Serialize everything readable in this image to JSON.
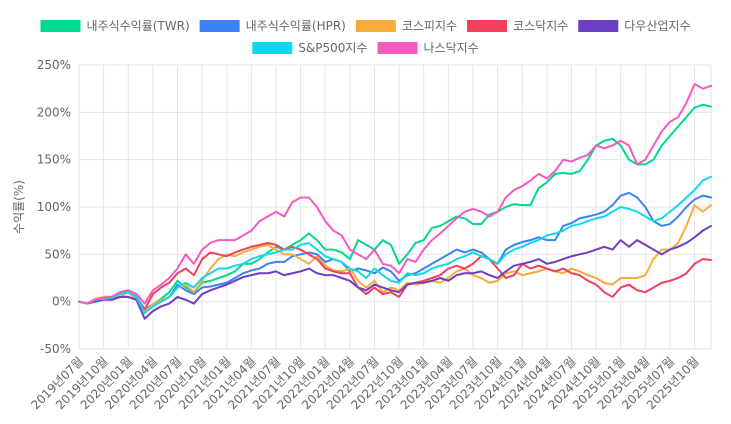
{
  "chart_data": {
    "type": "line",
    "ylabel": "수익률(%)",
    "ylim": [
      -50,
      250
    ],
    "yticks": [
      "250%",
      "200%",
      "150%",
      "100%",
      "50%",
      "0%",
      "-50%"
    ],
    "ytick_values": [
      250,
      200,
      150,
      100,
      50,
      0,
      -50
    ],
    "grid": true,
    "legend_position": "top",
    "xtick_labels": [
      "2019년07월",
      "2019년10월",
      "2020년01월",
      "2020년04월",
      "2020년07월",
      "2020년10월",
      "2021년01월",
      "2021년04월",
      "2021년07월",
      "2021년10월",
      "2022년01월",
      "2022년04월",
      "2022년07월",
      "2022년10월",
      "2023년01월",
      "2023년04월",
      "2023년07월",
      "2023년10월",
      "2024년01월",
      "2024년04월",
      "2024년07월",
      "2024년10월",
      "2025년01월",
      "2025년04월",
      "2025년07월",
      "2025년10월"
    ],
    "x": [
      "2019-07",
      "2019-08",
      "2019-09",
      "2019-10",
      "2019-11",
      "2019-12",
      "2020-01",
      "2020-02",
      "2020-03",
      "2020-04",
      "2020-05",
      "2020-06",
      "2020-07",
      "2020-08",
      "2020-09",
      "2020-10",
      "2020-11",
      "2020-12",
      "2021-01",
      "2021-02",
      "2021-03",
      "2021-04",
      "2021-05",
      "2021-06",
      "2021-07",
      "2021-08",
      "2021-09",
      "2021-10",
      "2021-11",
      "2021-12",
      "2022-01",
      "2022-02",
      "2022-03",
      "2022-04",
      "2022-05",
      "2022-06",
      "2022-07",
      "2022-08",
      "2022-09",
      "2022-10",
      "2022-11",
      "2022-12",
      "2023-01",
      "2023-02",
      "2023-03",
      "2023-04",
      "2023-05",
      "2023-06",
      "2023-07",
      "2023-08",
      "2023-09",
      "2023-10",
      "2023-11",
      "2023-12",
      "2024-01",
      "2024-02",
      "2024-03",
      "2024-04",
      "2024-05",
      "2024-06",
      "2024-07",
      "2024-08",
      "2024-09",
      "2024-10",
      "2024-11",
      "2024-12",
      "2025-01",
      "2025-02",
      "2025-03",
      "2025-04",
      "2025-05",
      "2025-06",
      "2025-07",
      "2025-08",
      "2025-09",
      "2025-10",
      "2025-11",
      "2025-12"
    ],
    "series": [
      {
        "name": "내주식수익률(TWR)",
        "color": "#00d98b",
        "values": [
          0,
          -2,
          3,
          5,
          5,
          10,
          12,
          5,
          -10,
          -3,
          3,
          10,
          22,
          15,
          10,
          20,
          22,
          25,
          28,
          32,
          40,
          40,
          45,
          52,
          58,
          55,
          60,
          65,
          72,
          65,
          55,
          55,
          52,
          45,
          65,
          60,
          55,
          65,
          60,
          40,
          50,
          62,
          65,
          78,
          80,
          85,
          90,
          88,
          82,
          82,
          92,
          95,
          100,
          103,
          102,
          102,
          120,
          126,
          135,
          136,
          135,
          138,
          150,
          165,
          170,
          172,
          165,
          150,
          145,
          145,
          150,
          165,
          175,
          185,
          195,
          205,
          208,
          206
        ]
      },
      {
        "name": "내주식수익률(HPR)",
        "color": "#3b82f6",
        "values": [
          0,
          -2,
          2,
          4,
          5,
          10,
          10,
          5,
          -8,
          -3,
          0,
          5,
          18,
          12,
          8,
          15,
          16,
          18,
          20,
          25,
          30,
          33,
          35,
          40,
          42,
          42,
          48,
          50,
          52,
          50,
          42,
          45,
          42,
          32,
          35,
          33,
          30,
          36,
          32,
          22,
          28,
          30,
          35,
          40,
          45,
          50,
          55,
          52,
          55,
          52,
          45,
          40,
          55,
          60,
          63,
          65,
          68,
          65,
          65,
          80,
          83,
          88,
          90,
          92,
          95,
          102,
          112,
          115,
          110,
          100,
          85,
          80,
          82,
          90,
          100,
          108,
          112,
          110
        ]
      },
      {
        "name": "코스피지수",
        "color": "#f6ad37",
        "values": [
          0,
          -2,
          3,
          5,
          5,
          5,
          10,
          2,
          -10,
          -3,
          2,
          5,
          15,
          18,
          10,
          22,
          35,
          45,
          50,
          48,
          52,
          55,
          58,
          60,
          55,
          50,
          50,
          45,
          40,
          48,
          38,
          33,
          32,
          35,
          22,
          15,
          22,
          10,
          15,
          12,
          20,
          18,
          20,
          22,
          20,
          25,
          32,
          35,
          28,
          25,
          20,
          22,
          30,
          32,
          28,
          30,
          32,
          35,
          32,
          30,
          35,
          32,
          28,
          25,
          20,
          18,
          25,
          25,
          25,
          28,
          45,
          55,
          55,
          62,
          80,
          102,
          95,
          102
        ]
      },
      {
        "name": "코스닥지수",
        "color": "#f43f5e",
        "values": [
          0,
          -2,
          2,
          3,
          2,
          5,
          5,
          2,
          -8,
          8,
          15,
          20,
          30,
          35,
          28,
          45,
          52,
          50,
          48,
          52,
          55,
          58,
          60,
          62,
          60,
          55,
          58,
          55,
          50,
          45,
          35,
          32,
          30,
          30,
          15,
          8,
          15,
          8,
          10,
          5,
          18,
          20,
          22,
          25,
          28,
          35,
          38,
          35,
          40,
          48,
          45,
          35,
          25,
          28,
          40,
          35,
          38,
          35,
          32,
          35,
          30,
          28,
          22,
          18,
          10,
          5,
          15,
          18,
          12,
          10,
          15,
          20,
          22,
          25,
          30,
          40,
          45,
          44
        ]
      },
      {
        "name": "다우산업지수",
        "color": "#6d3fc4",
        "values": [
          0,
          -2,
          0,
          2,
          2,
          5,
          5,
          2,
          -18,
          -10,
          -5,
          -2,
          5,
          2,
          -2,
          8,
          12,
          15,
          18,
          22,
          26,
          28,
          30,
          30,
          32,
          28,
          30,
          32,
          35,
          30,
          28,
          28,
          25,
          22,
          15,
          12,
          18,
          15,
          12,
          10,
          18,
          20,
          20,
          22,
          25,
          22,
          28,
          30,
          30,
          32,
          28,
          25,
          32,
          38,
          40,
          42,
          45,
          40,
          42,
          45,
          48,
          50,
          52,
          55,
          58,
          55,
          65,
          58,
          65,
          60,
          55,
          50,
          55,
          58,
          62,
          68,
          75,
          80
        ]
      },
      {
        "name": "S&P500지수",
        "color": "#11d8eb",
        "values": [
          0,
          -2,
          2,
          3,
          4,
          8,
          10,
          5,
          -12,
          -5,
          0,
          5,
          15,
          20,
          15,
          25,
          30,
          35,
          35,
          38,
          40,
          45,
          48,
          50,
          52,
          55,
          55,
          60,
          62,
          55,
          48,
          45,
          42,
          35,
          32,
          25,
          35,
          28,
          22,
          20,
          30,
          28,
          30,
          35,
          38,
          40,
          45,
          48,
          52,
          48,
          45,
          40,
          50,
          55,
          58,
          62,
          65,
          70,
          72,
          75,
          80,
          82,
          85,
          88,
          90,
          95,
          100,
          98,
          95,
          90,
          85,
          88,
          95,
          102,
          110,
          118,
          128,
          132
        ]
      },
      {
        "name": "나스닥지수",
        "color": "#f758c2",
        "values": [
          0,
          -2,
          2,
          4,
          5,
          10,
          12,
          8,
          -2,
          12,
          18,
          25,
          35,
          50,
          40,
          55,
          62,
          65,
          65,
          65,
          70,
          75,
          85,
          90,
          95,
          90,
          105,
          110,
          110,
          100,
          85,
          75,
          70,
          55,
          50,
          45,
          55,
          40,
          38,
          30,
          45,
          42,
          55,
          65,
          72,
          80,
          88,
          95,
          98,
          95,
          90,
          95,
          110,
          118,
          122,
          128,
          135,
          130,
          138,
          150,
          148,
          152,
          155,
          165,
          162,
          165,
          170,
          165,
          145,
          150,
          165,
          180,
          190,
          195,
          210,
          230,
          225,
          228
        ]
      }
    ]
  }
}
